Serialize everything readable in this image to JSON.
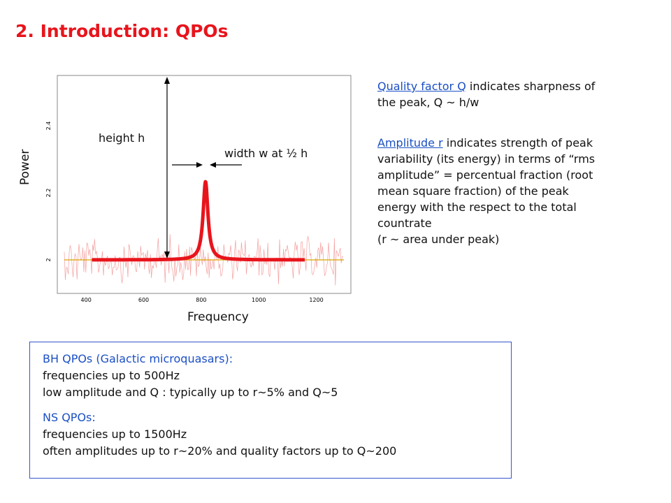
{
  "title": "2. Introduction: QPOs",
  "plot": {
    "x_ticks": [
      "400",
      "600",
      "800",
      "1000",
      "1200"
    ],
    "y_ticks": [
      "2",
      "2.2",
      "2.4"
    ],
    "ylabel": "Power",
    "xlabel": "Frequency",
    "height_label": "height h",
    "width_label": "width w at ½ h",
    "colors": {
      "noise": "#f4a0a0",
      "fit": "#e8141c",
      "baseline": "#d9a300"
    }
  },
  "chart_data": {
    "type": "line",
    "x_ticks": [
      400,
      600,
      800,
      1000,
      1200
    ],
    "y_ticks": [
      2,
      2.2,
      2.4
    ],
    "xlim": [
      300,
      1320
    ],
    "ylim": [
      1.9,
      2.55
    ],
    "ylabel": "Power",
    "xlabel": "Frequency",
    "series": [
      {
        "type": "lorentzian_fit",
        "center": 815,
        "baseline": 2.0,
        "x_range": [
          420,
          1160
        ]
      }
    ],
    "annotations": [
      "height h",
      "width w at ½ h"
    ]
  },
  "desc": {
    "q_term": "Quality factor Q",
    "q_rest_1": " indicates sharpness of",
    "q_rest_2": "the peak, Q ~ h/w",
    "r_term": "Amplitude r",
    "r_rest_1": "  indicates strength of peak",
    "r_lines": [
      "variability (its energy) in terms of “rms",
      "amplitude” = percentual fraction (root",
      "mean square fraction) of the peak",
      "energy with the respect to the total",
      "countrate",
      "(r ~ area under peak)"
    ]
  },
  "box": {
    "bh_head": "BH QPOs (Galactic microquasars):",
    "bh_1": "frequencies up to 500Hz",
    "bh_2": "low amplitude and Q : typically up to r~5% and Q~5",
    "ns_head": "NS QPOs:",
    "ns_1": "frequencies up to 1500Hz",
    "ns_2": "often amplitudes up to r~20% and quality factors up to Q~200"
  }
}
